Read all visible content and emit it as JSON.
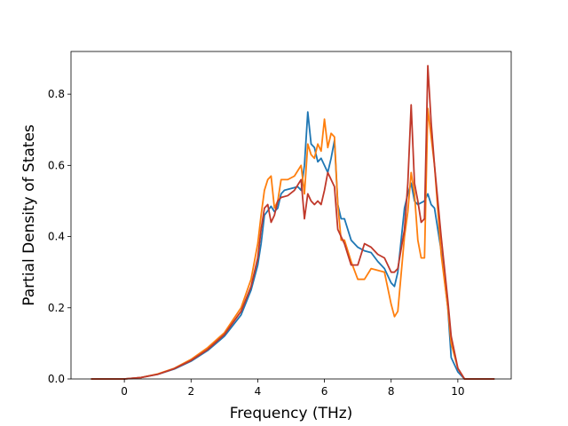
{
  "chart_data": {
    "type": "line",
    "xlabel": "Frequency (THz)",
    "ylabel": "Partial Density of States",
    "xlim": [
      -1.6,
      11.6
    ],
    "ylim": [
      0.0,
      0.92
    ],
    "xticks": [
      0,
      2,
      4,
      6,
      8,
      10
    ],
    "yticks": [
      0.0,
      0.2,
      0.4,
      0.6,
      0.8
    ],
    "xtick_labels": [
      "0",
      "2",
      "4",
      "6",
      "8",
      "10"
    ],
    "ytick_labels": [
      "0.0",
      "0.2",
      "0.4",
      "0.6",
      "0.8"
    ],
    "grid": false,
    "legend": "none",
    "series": [
      {
        "color": "#1f77b4",
        "points": [
          [
            -1.0,
            0.0
          ],
          [
            0.0,
            0.0
          ],
          [
            0.5,
            0.004
          ],
          [
            1.0,
            0.013
          ],
          [
            1.5,
            0.028
          ],
          [
            2.0,
            0.05
          ],
          [
            2.5,
            0.08
          ],
          [
            3.0,
            0.12
          ],
          [
            3.5,
            0.18
          ],
          [
            3.8,
            0.25
          ],
          [
            4.0,
            0.32
          ],
          [
            4.1,
            0.38
          ],
          [
            4.2,
            0.46
          ],
          [
            4.4,
            0.485
          ],
          [
            4.5,
            0.47
          ],
          [
            4.6,
            0.48
          ],
          [
            4.7,
            0.52
          ],
          [
            4.8,
            0.53
          ],
          [
            5.0,
            0.535
          ],
          [
            5.2,
            0.54
          ],
          [
            5.3,
            0.53
          ],
          [
            5.4,
            0.6
          ],
          [
            5.5,
            0.75
          ],
          [
            5.6,
            0.66
          ],
          [
            5.7,
            0.65
          ],
          [
            5.8,
            0.61
          ],
          [
            5.9,
            0.62
          ],
          [
            6.0,
            0.6
          ],
          [
            6.1,
            0.58
          ],
          [
            6.2,
            0.62
          ],
          [
            6.3,
            0.67
          ],
          [
            6.4,
            0.49
          ],
          [
            6.5,
            0.45
          ],
          [
            6.6,
            0.45
          ],
          [
            6.8,
            0.39
          ],
          [
            7.0,
            0.37
          ],
          [
            7.2,
            0.36
          ],
          [
            7.4,
            0.355
          ],
          [
            7.6,
            0.33
          ],
          [
            7.8,
            0.31
          ],
          [
            8.0,
            0.27
          ],
          [
            8.1,
            0.26
          ],
          [
            8.2,
            0.3
          ],
          [
            8.4,
            0.48
          ],
          [
            8.5,
            0.52
          ],
          [
            8.6,
            0.55
          ],
          [
            8.7,
            0.5
          ],
          [
            8.8,
            0.49
          ],
          [
            9.0,
            0.5
          ],
          [
            9.1,
            0.52
          ],
          [
            9.2,
            0.49
          ],
          [
            9.3,
            0.48
          ],
          [
            9.5,
            0.36
          ],
          [
            9.7,
            0.2
          ],
          [
            9.8,
            0.06
          ],
          [
            10.0,
            0.02
          ],
          [
            10.2,
            0.0
          ],
          [
            11.1,
            0.0
          ]
        ]
      },
      {
        "color": "#ff7f0e",
        "points": [
          [
            -1.0,
            0.0
          ],
          [
            0.0,
            0.0
          ],
          [
            0.5,
            0.004
          ],
          [
            1.0,
            0.014
          ],
          [
            1.5,
            0.03
          ],
          [
            2.0,
            0.055
          ],
          [
            2.5,
            0.088
          ],
          [
            3.0,
            0.13
          ],
          [
            3.5,
            0.2
          ],
          [
            3.8,
            0.28
          ],
          [
            4.0,
            0.38
          ],
          [
            4.1,
            0.46
          ],
          [
            4.2,
            0.53
          ],
          [
            4.3,
            0.56
          ],
          [
            4.4,
            0.57
          ],
          [
            4.5,
            0.48
          ],
          [
            4.6,
            0.5
          ],
          [
            4.7,
            0.56
          ],
          [
            4.9,
            0.56
          ],
          [
            5.1,
            0.57
          ],
          [
            5.3,
            0.6
          ],
          [
            5.4,
            0.52
          ],
          [
            5.5,
            0.66
          ],
          [
            5.6,
            0.63
          ],
          [
            5.7,
            0.62
          ],
          [
            5.8,
            0.66
          ],
          [
            5.9,
            0.64
          ],
          [
            6.0,
            0.73
          ],
          [
            6.1,
            0.65
          ],
          [
            6.2,
            0.69
          ],
          [
            6.3,
            0.68
          ],
          [
            6.4,
            0.49
          ],
          [
            6.5,
            0.39
          ],
          [
            6.6,
            0.39
          ],
          [
            6.8,
            0.33
          ],
          [
            7.0,
            0.28
          ],
          [
            7.2,
            0.28
          ],
          [
            7.4,
            0.31
          ],
          [
            7.6,
            0.305
          ],
          [
            7.8,
            0.3
          ],
          [
            8.0,
            0.21
          ],
          [
            8.1,
            0.175
          ],
          [
            8.2,
            0.19
          ],
          [
            8.4,
            0.4
          ],
          [
            8.5,
            0.47
          ],
          [
            8.6,
            0.58
          ],
          [
            8.7,
            0.52
          ],
          [
            8.8,
            0.39
          ],
          [
            8.9,
            0.34
          ],
          [
            9.0,
            0.34
          ],
          [
            9.1,
            0.76
          ],
          [
            9.2,
            0.68
          ],
          [
            9.3,
            0.6
          ],
          [
            9.5,
            0.35
          ],
          [
            9.7,
            0.2
          ],
          [
            9.8,
            0.1
          ],
          [
            10.0,
            0.03
          ],
          [
            10.2,
            0.0
          ],
          [
            11.1,
            0.0
          ]
        ]
      },
      {
        "color": "#c0392b",
        "points": [
          [
            -1.0,
            0.0
          ],
          [
            0.0,
            0.0
          ],
          [
            0.5,
            0.004
          ],
          [
            1.0,
            0.013
          ],
          [
            1.5,
            0.029
          ],
          [
            2.0,
            0.052
          ],
          [
            2.5,
            0.083
          ],
          [
            3.0,
            0.125
          ],
          [
            3.5,
            0.19
          ],
          [
            3.8,
            0.26
          ],
          [
            4.0,
            0.34
          ],
          [
            4.1,
            0.42
          ],
          [
            4.2,
            0.48
          ],
          [
            4.3,
            0.49
          ],
          [
            4.4,
            0.44
          ],
          [
            4.5,
            0.46
          ],
          [
            4.6,
            0.5
          ],
          [
            4.7,
            0.51
          ],
          [
            4.9,
            0.515
          ],
          [
            5.1,
            0.53
          ],
          [
            5.3,
            0.56
          ],
          [
            5.4,
            0.45
          ],
          [
            5.5,
            0.52
          ],
          [
            5.6,
            0.5
          ],
          [
            5.7,
            0.49
          ],
          [
            5.8,
            0.5
          ],
          [
            5.9,
            0.49
          ],
          [
            6.0,
            0.53
          ],
          [
            6.1,
            0.58
          ],
          [
            6.2,
            0.56
          ],
          [
            6.3,
            0.54
          ],
          [
            6.4,
            0.42
          ],
          [
            6.5,
            0.4
          ],
          [
            6.6,
            0.38
          ],
          [
            6.8,
            0.32
          ],
          [
            7.0,
            0.32
          ],
          [
            7.2,
            0.38
          ],
          [
            7.4,
            0.37
          ],
          [
            7.6,
            0.35
          ],
          [
            7.8,
            0.34
          ],
          [
            8.0,
            0.3
          ],
          [
            8.1,
            0.3
          ],
          [
            8.2,
            0.31
          ],
          [
            8.4,
            0.42
          ],
          [
            8.5,
            0.55
          ],
          [
            8.6,
            0.77
          ],
          [
            8.7,
            0.55
          ],
          [
            8.8,
            0.5
          ],
          [
            8.9,
            0.44
          ],
          [
            9.0,
            0.45
          ],
          [
            9.1,
            0.88
          ],
          [
            9.2,
            0.72
          ],
          [
            9.3,
            0.6
          ],
          [
            9.5,
            0.4
          ],
          [
            9.7,
            0.22
          ],
          [
            9.8,
            0.12
          ],
          [
            10.0,
            0.03
          ],
          [
            10.2,
            0.0
          ],
          [
            11.1,
            0.0
          ]
        ]
      }
    ]
  }
}
